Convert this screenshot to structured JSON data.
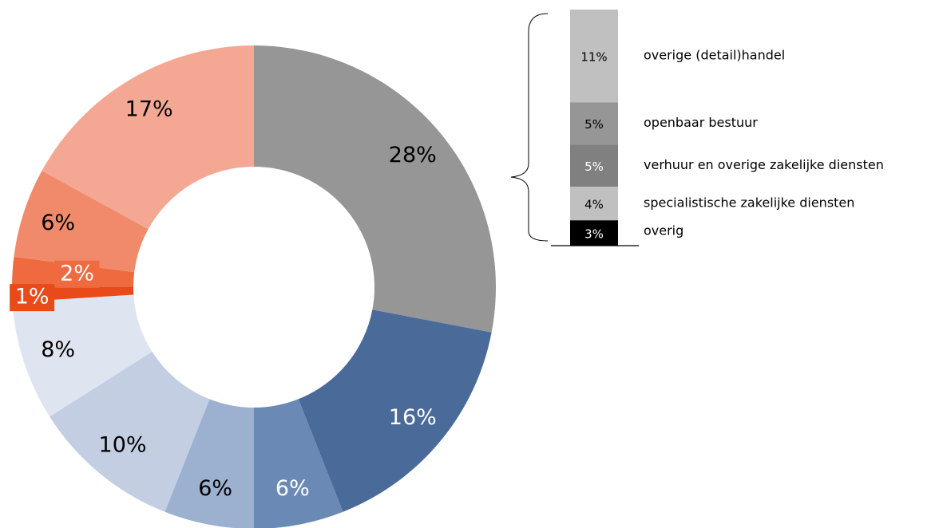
{
  "chart_data": [
    {
      "type": "pie",
      "donut": true,
      "values": [
        28,
        16,
        6,
        6,
        10,
        8,
        1,
        2,
        6,
        17
      ],
      "value_labels": [
        "28%",
        "16%",
        "6%",
        "6%",
        "10%",
        "8%",
        "1%",
        "2%",
        "6%",
        "17%"
      ],
      "colors": [
        "#969696",
        "#4a6a9a",
        "#6a8ab5",
        "#9cb0cf",
        "#c3cee2",
        "#dfe5f0",
        "#e84a1a",
        "#f06a40",
        "#f08a6a",
        "#f4a894"
      ],
      "label_colors": [
        "#000000",
        "#ffffff",
        "#ffffff",
        "#000000",
        "#000000",
        "#000000",
        "#ffffff",
        "#ffffff",
        "#000000",
        "#000000"
      ]
    },
    {
      "type": "bar",
      "stacked": true,
      "categories": [
        "overige (detail)handel",
        "openbaar bestuur",
        "verhuur en overige zakelijke diensten",
        "specialistische zakelijke diensten",
        "overig"
      ],
      "values": [
        11,
        5,
        5,
        4,
        3
      ],
      "value_labels": [
        "11%",
        "5%",
        "5%",
        "4%",
        "3%"
      ],
      "colors": [
        "#c0c0c0",
        "#969696",
        "#808080",
        "#c0c0c0",
        "#000000"
      ],
      "label_colors": [
        "#000000",
        "#000000",
        "#ffffff",
        "#000000",
        "#ffffff"
      ]
    }
  ]
}
